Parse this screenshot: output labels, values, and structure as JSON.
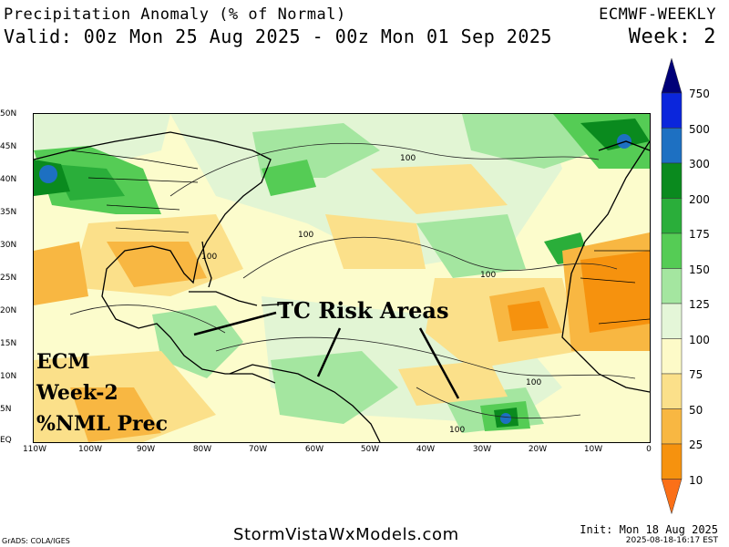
{
  "header": {
    "title": "Precipitation Anomaly (% of Normal)",
    "valid": "Valid: 00z Mon 25 Aug 2025 - 00z Mon 01 Sep 2025",
    "model": "ECMWF-WEEKLY",
    "week": "Week: 2"
  },
  "map": {
    "lat_ticks": [
      "50N",
      "45N",
      "40N",
      "35N",
      "30N",
      "25N",
      "20N",
      "15N",
      "10N",
      "5N",
      "EQ"
    ],
    "lon_ticks": [
      "110W",
      "100W",
      "90W",
      "80W",
      "70W",
      "60W",
      "50W",
      "40W",
      "30W",
      "20W",
      "10W",
      "0"
    ],
    "contour_labels": [
      "100",
      "100",
      "100",
      "100",
      "100",
      "100"
    ]
  },
  "colorbar": {
    "levels": [
      "750",
      "500",
      "300",
      "200",
      "175",
      "150",
      "125",
      "100",
      "75",
      "50",
      "25",
      "10"
    ],
    "colors": [
      "#000078",
      "#0b26dc",
      "#1d70c2",
      "#0a8a1e",
      "#2aae3a",
      "#55cc55",
      "#a4e6a0",
      "#e4f6d8",
      "#fdfac8",
      "#fbe08a",
      "#f8b742",
      "#f6920e",
      "#fb7018"
    ]
  },
  "annotations": {
    "tc": "TC Risk Areas",
    "ecm_lines": [
      "ECM",
      "Week-2",
      "%NML Prec"
    ]
  },
  "footer": {
    "grads": "GrADS: COLA/IGES",
    "site": "StormVistaWxModels.com",
    "init": "Init: Mon 18 Aug 2025",
    "stamp": "2025-08-18-16:17 EST"
  }
}
